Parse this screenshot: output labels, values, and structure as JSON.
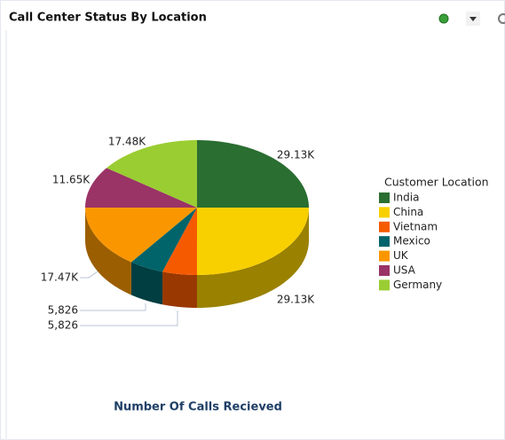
{
  "chart_data": {
    "type": "pie",
    "title": "Call Center Status By Location",
    "x_label": "Number Of Calls Recieved",
    "legend_title": "Customer Location",
    "legend": "right",
    "categories": [
      "India",
      "China",
      "Vietnam",
      "Mexico",
      "UK",
      "USA",
      "Germany"
    ],
    "values": [
      29130,
      29130,
      5826,
      5826,
      17470,
      11650,
      17480
    ],
    "value_labels": [
      "29.13K",
      "29.13K",
      "5,826",
      "5,826",
      "17.47K",
      "11.65K",
      "17.48K"
    ],
    "colors": [
      "#2a6e31",
      "#f8d000",
      "#f65a00",
      "#00646a",
      "#fa9700",
      "#9a3366",
      "#9acd32"
    ]
  }
}
